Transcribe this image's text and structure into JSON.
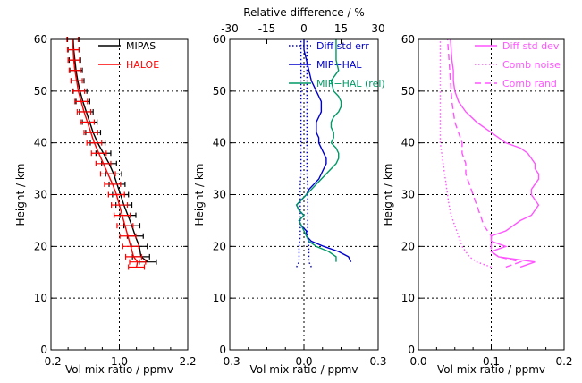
{
  "chart_data": [
    {
      "type": "line",
      "panel": "left",
      "xlabel": "Vol mix ratio / ppmv",
      "ylabel": "Height / km",
      "xlim": [
        -0.2,
        2.2
      ],
      "ylim": [
        0,
        60
      ],
      "x_ticks": [
        "-0.2",
        "1.0",
        "2.2"
      ],
      "y_ticks": [
        "0",
        "10",
        "20",
        "30",
        "40",
        "50",
        "60"
      ],
      "grid": "dotted",
      "legend_position": "top-right",
      "series": [
        {
          "name": "MIPAS",
          "color": "#000000",
          "error_bars": true,
          "y": [
            17,
            18,
            20,
            22,
            24,
            26,
            28,
            30,
            32,
            34,
            36,
            38,
            40,
            42,
            44,
            46,
            48,
            50,
            52,
            54,
            56,
            58,
            60
          ],
          "x": [
            1.5,
            1.38,
            1.35,
            1.28,
            1.22,
            1.15,
            1.08,
            1.02,
            0.96,
            0.9,
            0.82,
            0.72,
            0.62,
            0.54,
            0.48,
            0.42,
            0.36,
            0.31,
            0.27,
            0.24,
            0.22,
            0.2,
            0.19
          ],
          "err": [
            0.15,
            0.15,
            0.14,
            0.14,
            0.14,
            0.14,
            0.14,
            0.14,
            0.14,
            0.14,
            0.13,
            0.13,
            0.13,
            0.13,
            0.13,
            0.12,
            0.12,
            0.12,
            0.11,
            0.11,
            0.1,
            0.1,
            0.1
          ]
        },
        {
          "name": "HALOE",
          "color": "#ff0000",
          "error_bars": true,
          "y": [
            16,
            17,
            18,
            20,
            22,
            24,
            26,
            28,
            30,
            32,
            34,
            36,
            38,
            40,
            42,
            44,
            46,
            48,
            50,
            52,
            54,
            56,
            58,
            60
          ],
          "x": [
            1.3,
            1.32,
            1.25,
            1.2,
            1.15,
            1.1,
            1.05,
            1.0,
            0.95,
            0.88,
            0.8,
            0.72,
            0.64,
            0.56,
            0.5,
            0.44,
            0.38,
            0.33,
            0.28,
            0.25,
            0.22,
            0.2,
            0.19,
            0.18
          ],
          "err": [
            0.14,
            0.14,
            0.14,
            0.14,
            0.14,
            0.14,
            0.14,
            0.14,
            0.14,
            0.14,
            0.13,
            0.13,
            0.13,
            0.13,
            0.12,
            0.12,
            0.12,
            0.11,
            0.11,
            0.1,
            0.1,
            0.1,
            0.1,
            0.1
          ]
        }
      ]
    },
    {
      "type": "line",
      "panel": "middle",
      "xlabel": "Vol mix ratio / ppmv",
      "ylabel": "Height / km",
      "xlim": [
        -0.3,
        0.3
      ],
      "ylim": [
        0,
        60
      ],
      "x_ticks": [
        "-0.3",
        "0.0",
        "0.3"
      ],
      "y_ticks": [
        "0",
        "10",
        "20",
        "30",
        "40",
        "50",
        "60"
      ],
      "top_axis_label": "Relative difference / %",
      "top_axis_lim": [
        -30,
        30
      ],
      "top_axis_ticks": [
        "-30",
        "-15",
        "0",
        "15",
        "30"
      ],
      "grid": "dotted",
      "legend_position": "top-right",
      "series": [
        {
          "name": "Diff std err",
          "color": "#0000cc",
          "style": "dotted",
          "symmetric": true,
          "y": [
            16,
            17,
            18,
            20,
            22,
            24,
            26,
            28,
            30,
            32,
            34,
            36,
            38,
            40,
            42,
            44,
            46,
            48,
            50,
            52,
            54,
            56,
            58,
            60
          ],
          "x": [
            0.03,
            0.02,
            0.02,
            0.02,
            0.015,
            0.015,
            0.015,
            0.015,
            0.015,
            0.015,
            0.012,
            0.012,
            0.012,
            0.012,
            0.012,
            0.012,
            0.012,
            0.012,
            0.012,
            0.012,
            0.012,
            0.012,
            0.012,
            0.012
          ]
        },
        {
          "name": "MIP−HAL",
          "color": "#0000cc",
          "y": [
            17,
            18,
            19,
            20,
            21,
            22,
            23,
            24,
            25,
            26,
            27,
            28,
            29,
            30,
            31,
            32,
            33,
            34,
            35,
            36,
            37,
            38,
            39,
            40,
            41,
            42,
            43,
            44,
            45,
            46,
            47,
            48,
            49,
            50,
            52,
            54,
            56,
            58,
            60
          ],
          "x": [
            0.19,
            0.18,
            0.14,
            0.08,
            0.03,
            0.01,
            0.01,
            -0.01,
            -0.02,
            0.0,
            -0.02,
            -0.03,
            -0.01,
            0.01,
            0.02,
            0.04,
            0.06,
            0.07,
            0.08,
            0.09,
            0.09,
            0.08,
            0.07,
            0.06,
            0.06,
            0.05,
            0.05,
            0.05,
            0.06,
            0.07,
            0.07,
            0.07,
            0.06,
            0.05,
            0.03,
            0.02,
            0.01,
            0.0,
            0.0
          ]
        },
        {
          "name": "MIP−HAL (rel)",
          "color": "#009966",
          "y": [
            17,
            18,
            19,
            20,
            21,
            22,
            23,
            24,
            25,
            26,
            27,
            28,
            29,
            30,
            31,
            32,
            33,
            34,
            35,
            36,
            37,
            38,
            39,
            40,
            41,
            42,
            43,
            44,
            45,
            46,
            47,
            48,
            49,
            50,
            52,
            54,
            56,
            58,
            60
          ],
          "x": [
            13,
            13,
            10,
            5,
            2,
            1,
            0,
            -1,
            -2,
            0,
            -2,
            -3,
            -1,
            1,
            3,
            5,
            7,
            9,
            11,
            13,
            14,
            14,
            13,
            11,
            12,
            12,
            11,
            11,
            12,
            14,
            15,
            15,
            14,
            12,
            11,
            14,
            13,
            13,
            13
          ]
        }
      ]
    },
    {
      "type": "line",
      "panel": "right",
      "xlabel": "Vol mix ratio / ppmv",
      "ylabel": "Height / km",
      "xlim": [
        0,
        0.2
      ],
      "ylim": [
        0,
        60
      ],
      "x_ticks": [
        "0.0",
        "0.1",
        "0.2"
      ],
      "y_ticks": [
        "0",
        "10",
        "20",
        "30",
        "40",
        "50",
        "60"
      ],
      "grid": "dotted",
      "legend_position": "top-right",
      "series": [
        {
          "name": "Diff std dev",
          "color": "#ff55ff",
          "style": "solid",
          "y": [
            16,
            17,
            18,
            19,
            20,
            21,
            22,
            23,
            24,
            25,
            26,
            27,
            28,
            29,
            30,
            31,
            32,
            33,
            34,
            35,
            36,
            37,
            38,
            39,
            40,
            42,
            44,
            46,
            48,
            50,
            52,
            54,
            56,
            58,
            60
          ],
          "x": [
            0.14,
            0.16,
            0.11,
            0.1,
            0.12,
            0.1,
            0.1,
            0.12,
            0.13,
            0.14,
            0.155,
            0.16,
            0.165,
            0.16,
            0.155,
            0.155,
            0.16,
            0.165,
            0.165,
            0.16,
            0.16,
            0.155,
            0.15,
            0.14,
            0.12,
            0.1,
            0.08,
            0.065,
            0.055,
            0.05,
            0.048,
            0.048,
            0.046,
            0.045,
            0.044
          ]
        },
        {
          "name": "Comb noise",
          "color": "#ff55ff",
          "style": "dotted",
          "y": [
            16,
            17,
            18,
            20,
            22,
            24,
            26,
            28,
            30,
            32,
            34,
            36,
            38,
            40,
            42,
            44,
            46,
            48,
            50,
            52,
            54,
            56,
            58,
            60
          ],
          "x": [
            0.1,
            0.08,
            0.07,
            0.06,
            0.055,
            0.05,
            0.045,
            0.042,
            0.04,
            0.038,
            0.036,
            0.034,
            0.032,
            0.03,
            0.03,
            0.03,
            0.03,
            0.03,
            0.03,
            0.03,
            0.03,
            0.03,
            0.03,
            0.03
          ]
        },
        {
          "name": "Comb rand",
          "color": "#ff55ff",
          "style": "dashed",
          "y": [
            16,
            17,
            18,
            19,
            20,
            22,
            24,
            26,
            28,
            30,
            32,
            34,
            36,
            38,
            40,
            42,
            44,
            46,
            48,
            50,
            52,
            54,
            56,
            58,
            60
          ],
          "x": [
            0.12,
            0.14,
            0.11,
            0.1,
            0.1,
            0.1,
            0.09,
            0.085,
            0.08,
            0.075,
            0.07,
            0.065,
            0.065,
            0.06,
            0.06,
            0.055,
            0.05,
            0.048,
            0.046,
            0.045,
            0.044,
            0.043,
            0.042,
            0.041,
            0.04
          ]
        }
      ]
    }
  ]
}
